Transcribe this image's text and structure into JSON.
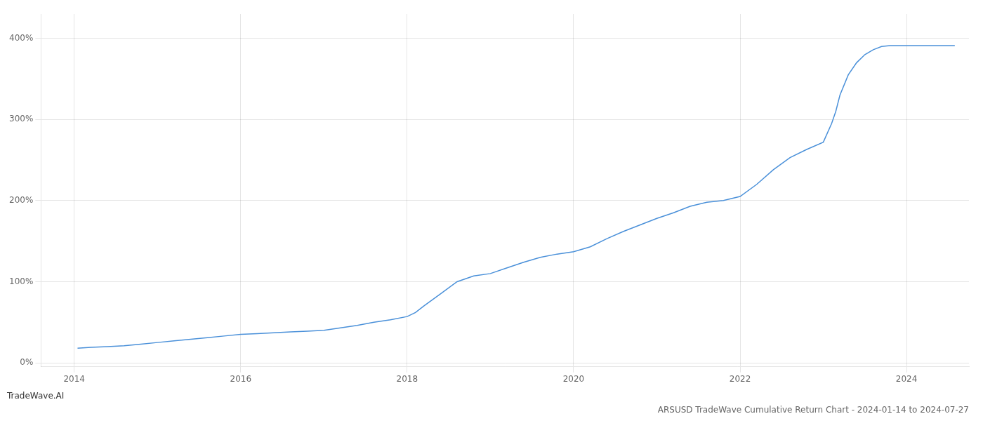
{
  "chart_data": {
    "type": "line",
    "title": "ARSUSD TradeWave Cumulative Return Chart - 2024-01-14 to 2024-07-27",
    "annotations": [
      "TradeWave.AI"
    ],
    "x": [
      2014.04,
      2014.2,
      2014.4,
      2014.6,
      2014.8,
      2015.0,
      2015.2,
      2015.4,
      2015.6,
      2015.8,
      2016.0,
      2016.2,
      2016.4,
      2016.6,
      2016.8,
      2017.0,
      2017.2,
      2017.4,
      2017.6,
      2017.8,
      2018.0,
      2018.1,
      2018.2,
      2018.4,
      2018.6,
      2018.8,
      2019.0,
      2019.2,
      2019.4,
      2019.6,
      2019.8,
      2020.0,
      2020.2,
      2020.4,
      2020.6,
      2020.8,
      2021.0,
      2021.2,
      2021.4,
      2021.6,
      2021.8,
      2022.0,
      2022.2,
      2022.4,
      2022.6,
      2022.8,
      2023.0,
      2023.1,
      2023.15,
      2023.2,
      2023.3,
      2023.4,
      2023.5,
      2023.6,
      2023.7,
      2023.8,
      2023.9,
      2024.0,
      2024.1,
      2024.3,
      2024.58
    ],
    "values": [
      18,
      19,
      20,
      21,
      23,
      25,
      27,
      29,
      31,
      33,
      35,
      36,
      37,
      38,
      39,
      40,
      43,
      46,
      50,
      53,
      57,
      62,
      70,
      85,
      100,
      107,
      110,
      117,
      124,
      130,
      134,
      137,
      143,
      153,
      162,
      170,
      178,
      185,
      193,
      198,
      200,
      205,
      220,
      238,
      253,
      263,
      272,
      295,
      310,
      330,
      355,
      370,
      380,
      386,
      390,
      391,
      391,
      391,
      391,
      391,
      391
    ],
    "color": "#4a90d9",
    "marker": "none",
    "xlim": [
      2013.6,
      2024.75
    ],
    "xticks": [
      2014,
      2016,
      2018,
      2020,
      2022,
      2024
    ],
    "ylim": [
      -5,
      430
    ],
    "yticks": [
      {
        "value": 0,
        "label": "0%"
      },
      {
        "value": 100,
        "label": "100%"
      },
      {
        "value": 200,
        "label": "200%"
      },
      {
        "value": 300,
        "label": "300%"
      },
      {
        "value": 400,
        "label": "400%"
      }
    ],
    "grid": true
  }
}
